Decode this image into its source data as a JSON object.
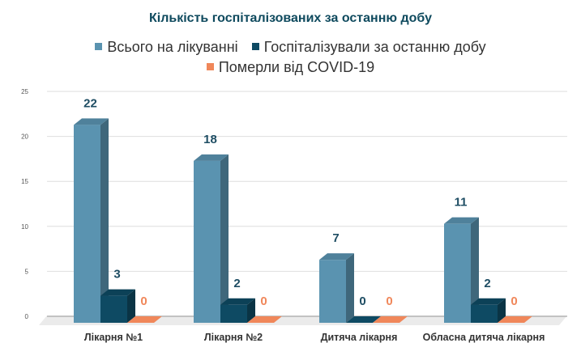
{
  "chart_data": {
    "type": "bar",
    "title": "Кількість госпіталізованих за останню добу",
    "categories": [
      "Лікарня №1",
      "Лікарня №2",
      "Дитяча лікарня",
      "Обласна дитяча лікарня"
    ],
    "series": [
      {
        "name": "Всього на лікуванні",
        "values": [
          22,
          18,
          7,
          11
        ],
        "color": "#5a93b0"
      },
      {
        "name": "Госпіталізували за останню добу",
        "values": [
          3,
          2,
          0,
          2
        ],
        "color": "#0e4a63"
      },
      {
        "name": "Померли від COVID-19",
        "values": [
          0,
          0,
          0,
          0
        ],
        "color": "#f0875a"
      }
    ],
    "yticks": [
      0,
      5,
      10,
      15,
      20,
      25
    ],
    "ylim": [
      0,
      25
    ],
    "grid": true,
    "legend": "top",
    "style": "3d",
    "label_colors": [
      "#1e4d63",
      "#1e4d63",
      "#f0875a"
    ]
  }
}
